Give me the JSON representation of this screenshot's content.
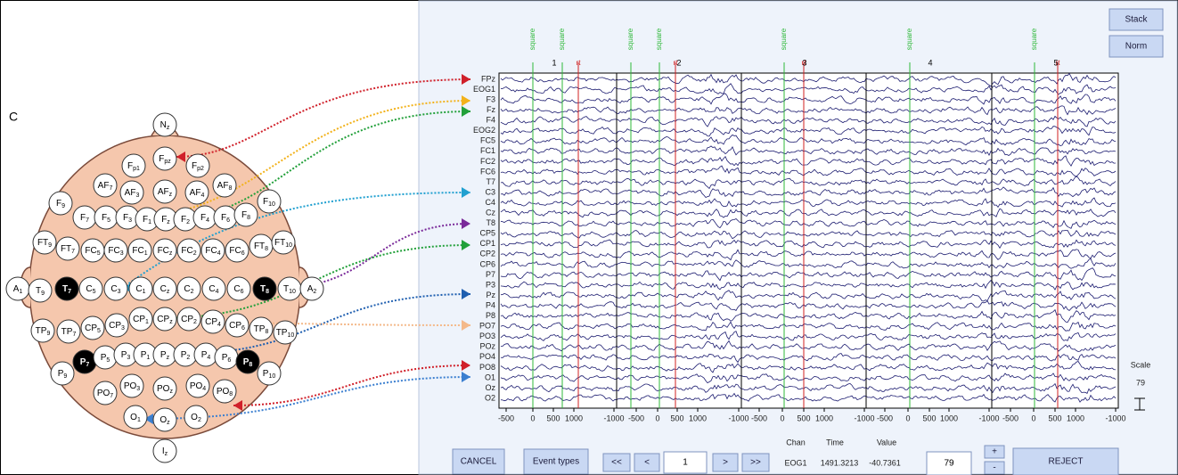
{
  "panel_label": "C",
  "electrodes": [
    {
      "name": "N",
      "sub": "z"
    },
    {
      "name": "F",
      "sub": "p1"
    },
    {
      "name": "F",
      "sub": "pz"
    },
    {
      "name": "F",
      "sub": "p2"
    },
    {
      "name": "AF",
      "sub": "7"
    },
    {
      "name": "AF",
      "sub": "3"
    },
    {
      "name": "AF",
      "sub": "z"
    },
    {
      "name": "AF",
      "sub": "4"
    },
    {
      "name": "AF",
      "sub": "8"
    },
    {
      "name": "F",
      "sub": "9"
    },
    {
      "name": "F",
      "sub": "7"
    },
    {
      "name": "F",
      "sub": "5"
    },
    {
      "name": "F",
      "sub": "3"
    },
    {
      "name": "F",
      "sub": "1"
    },
    {
      "name": "F",
      "sub": "z"
    },
    {
      "name": "F",
      "sub": "2"
    },
    {
      "name": "F",
      "sub": "4"
    },
    {
      "name": "F",
      "sub": "6"
    },
    {
      "name": "F",
      "sub": "8"
    },
    {
      "name": "F",
      "sub": "10"
    },
    {
      "name": "FT",
      "sub": "9"
    },
    {
      "name": "FT",
      "sub": "7"
    },
    {
      "name": "FC",
      "sub": "5"
    },
    {
      "name": "FC",
      "sub": "3"
    },
    {
      "name": "FC",
      "sub": "1"
    },
    {
      "name": "FC",
      "sub": "z"
    },
    {
      "name": "FC",
      "sub": "2"
    },
    {
      "name": "FC",
      "sub": "4"
    },
    {
      "name": "FC",
      "sub": "6"
    },
    {
      "name": "FT",
      "sub": "8"
    },
    {
      "name": "FT",
      "sub": "10"
    },
    {
      "name": "A",
      "sub": "1"
    },
    {
      "name": "T",
      "sub": "9"
    },
    {
      "name": "T",
      "sub": "7",
      "filled": true
    },
    {
      "name": "C",
      "sub": "5"
    },
    {
      "name": "C",
      "sub": "3"
    },
    {
      "name": "C",
      "sub": "1"
    },
    {
      "name": "C",
      "sub": "z"
    },
    {
      "name": "C",
      "sub": "2"
    },
    {
      "name": "C",
      "sub": "4"
    },
    {
      "name": "C",
      "sub": "6"
    },
    {
      "name": "T",
      "sub": "8",
      "filled": true
    },
    {
      "name": "T",
      "sub": "10"
    },
    {
      "name": "A",
      "sub": "2"
    },
    {
      "name": "TP",
      "sub": "9"
    },
    {
      "name": "TP",
      "sub": "7"
    },
    {
      "name": "CP",
      "sub": "5"
    },
    {
      "name": "CP",
      "sub": "3"
    },
    {
      "name": "CP",
      "sub": "1"
    },
    {
      "name": "CP",
      "sub": "z"
    },
    {
      "name": "CP",
      "sub": "2"
    },
    {
      "name": "CP",
      "sub": "4"
    },
    {
      "name": "CP",
      "sub": "6"
    },
    {
      "name": "TP",
      "sub": "8"
    },
    {
      "name": "TP",
      "sub": "10"
    },
    {
      "name": "P",
      "sub": "9"
    },
    {
      "name": "P",
      "sub": "7",
      "filled": true
    },
    {
      "name": "P",
      "sub": "5"
    },
    {
      "name": "P",
      "sub": "3"
    },
    {
      "name": "P",
      "sub": "1"
    },
    {
      "name": "P",
      "sub": "z"
    },
    {
      "name": "P",
      "sub": "2"
    },
    {
      "name": "P",
      "sub": "4"
    },
    {
      "name": "P",
      "sub": "6"
    },
    {
      "name": "P",
      "sub": "8",
      "filled": true
    },
    {
      "name": "P",
      "sub": "10"
    },
    {
      "name": "PO",
      "sub": "7"
    },
    {
      "name": "PO",
      "sub": "3"
    },
    {
      "name": "PO",
      "sub": "z"
    },
    {
      "name": "PO",
      "sub": "4"
    },
    {
      "name": "PO",
      "sub": "8"
    },
    {
      "name": "O",
      "sub": "1"
    },
    {
      "name": "O",
      "sub": "z"
    },
    {
      "name": "O",
      "sub": "2"
    },
    {
      "name": "I",
      "sub": "z"
    }
  ],
  "channels": [
    "FPz",
    "EOG1",
    "F3",
    "Fz",
    "F4",
    "EOG2",
    "FC5",
    "FC1",
    "FC2",
    "FC6",
    "T7",
    "C3",
    "C4",
    "Cz",
    "T8",
    "CP5",
    "CP1",
    "CP2",
    "CP6",
    "P7",
    "P3",
    "Pz",
    "P4",
    "P8",
    "PO7",
    "PO3",
    "POz",
    "PO4",
    "PO8",
    "O1",
    "Oz",
    "O2"
  ],
  "green_events": [
    "square",
    "square",
    "square",
    "square",
    "square",
    "square",
    "square"
  ],
  "red_events": [
    "rt",
    "rt",
    "rt",
    "rt"
  ],
  "epoch_numbers": [
    "1",
    "2",
    "3",
    "4",
    "5"
  ],
  "xtick_labels": [
    "-500",
    "0",
    "500",
    "1000",
    "-1000",
    "-500",
    "0",
    "500",
    "1000",
    "-1000",
    "-500",
    "0",
    "500",
    "1000",
    "-1000",
    "-500",
    "0",
    "500",
    "1000",
    "-1000",
    "-500",
    "0",
    "500",
    "1000",
    "-1000"
  ],
  "buttons": {
    "stack": "Stack",
    "norm": "Norm",
    "cancel": "CANCEL",
    "event_types": "Event types",
    "first": "<<",
    "prev": "<",
    "next": ">",
    "last": ">>",
    "plus": "+",
    "minus": "-",
    "reject": "REJECT"
  },
  "page_input": "1",
  "readout": {
    "headers": [
      "Chan",
      "Time",
      "Value"
    ],
    "values": [
      "EOG1",
      "1491.3213",
      "-40.7361"
    ]
  },
  "scale": {
    "label": "Scale",
    "value": "79"
  },
  "scale_input": "79"
}
